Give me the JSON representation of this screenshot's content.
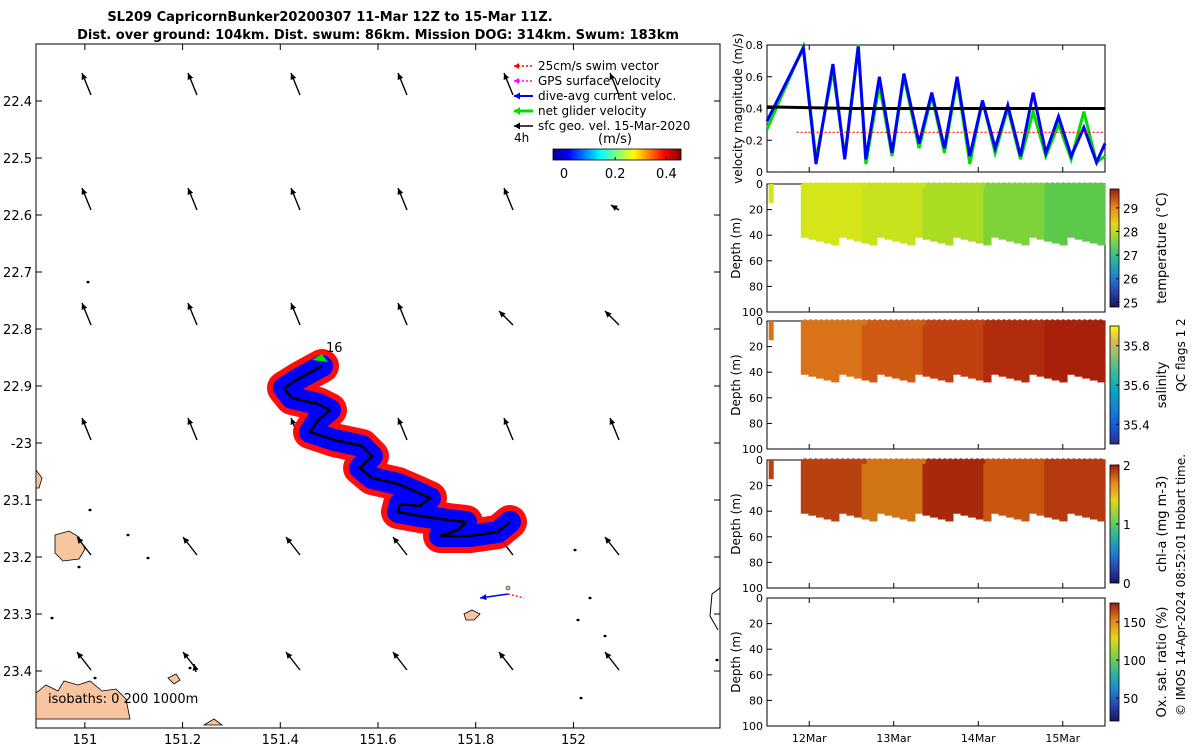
{
  "title": {
    "line1": "SL209 CapricornBunker20200307 11-Mar 12Z to 15-Mar 11Z.",
    "line2": "Dist. over ground: 104km. Dist. swum: 86km. Mission DOG: 314km. Swum: 183km"
  },
  "colors": {
    "swim": "#ff0000",
    "gps": "#ff00ff",
    "current": "#0000ff",
    "net": "#00cc00",
    "geo": "#000000",
    "land": "#f7c59f"
  },
  "map": {
    "legend": {
      "swim": "25cm/s swim vector",
      "gps": "GPS surface velocity",
      "current": "dive-avg current veloc.",
      "net": "net glider velocity",
      "geo": "sfc geo. vel. 15-Mar-2020"
    },
    "interval_label": "4h",
    "colorbar_title": "(m/s)",
    "colorbar_ticks": [
      "0",
      "0.2",
      "0.4"
    ],
    "track_label": "16",
    "isobaths_label": "isobaths: 0   200  1000m",
    "lon_ticks": [
      "151",
      "151.2",
      "151.4",
      "151.6",
      "151.8",
      "152"
    ],
    "lat_ticks": [
      "22.4",
      "22.5",
      "22.6",
      "22.7",
      "22.8",
      "22.9",
      "-23",
      "23.1",
      "23.2",
      "23.3",
      "23.4"
    ],
    "lon_range": [
      150.9,
      152.3
    ],
    "lat_range": [
      -23.5,
      -22.3
    ]
  },
  "chart_data": [
    {
      "type": "line",
      "title": "",
      "ylabel": "velocity magnitude (m/s)",
      "ylim": [
        0,
        0.8
      ],
      "y_ticks": [
        "0",
        "0.2",
        "0.4",
        "0.6",
        "0.8"
      ],
      "x_ticks": [
        "12Mar",
        "13Mar",
        "14Mar",
        "15Mar"
      ],
      "xlim": [
        11.5,
        15.5
      ],
      "series": [
        {
          "name": "net glider velocity",
          "color": "#00dd00",
          "x": [
            11.5,
            11.93,
            12.08,
            12.28,
            12.42,
            12.58,
            12.67,
            12.83,
            12.98,
            13.12,
            13.3,
            13.45,
            13.6,
            13.75,
            13.9,
            14.05,
            14.2,
            14.35,
            14.5,
            14.65,
            14.8,
            14.95,
            15.1,
            15.25,
            15.4,
            15.5
          ],
          "values": [
            0.27,
            0.79,
            0.08,
            0.64,
            0.1,
            0.8,
            0.05,
            0.55,
            0.1,
            0.6,
            0.15,
            0.48,
            0.12,
            0.58,
            0.05,
            0.45,
            0.12,
            0.4,
            0.08,
            0.38,
            0.1,
            0.3,
            0.08,
            0.38,
            0.06,
            0.1
          ]
        },
        {
          "name": "dive-avg current veloc.",
          "color": "#0000ff",
          "x": [
            11.5,
            11.93,
            12.08,
            12.28,
            12.42,
            12.58,
            12.67,
            12.83,
            12.98,
            13.12,
            13.3,
            13.45,
            13.6,
            13.75,
            13.9,
            14.05,
            14.2,
            14.35,
            14.5,
            14.65,
            14.8,
            14.95,
            15.1,
            15.25,
            15.4,
            15.5
          ],
          "values": [
            0.32,
            0.78,
            0.05,
            0.68,
            0.08,
            0.79,
            0.08,
            0.6,
            0.12,
            0.62,
            0.18,
            0.5,
            0.15,
            0.6,
            0.1,
            0.45,
            0.15,
            0.42,
            0.1,
            0.5,
            0.12,
            0.35,
            0.1,
            0.28,
            0.06,
            0.18
          ]
        },
        {
          "name": "sfc geo. vel. 15-Mar-2020",
          "color": "#000000",
          "x": [
            11.5,
            12.5,
            13.5,
            14.5,
            15.5
          ],
          "values": [
            0.41,
            0.4,
            0.4,
            0.4,
            0.4
          ]
        },
        {
          "name": "25cm/s swim vector",
          "color": "#ff0000",
          "x": [
            11.85,
            15.5
          ],
          "values": [
            0.25,
            0.25
          ]
        }
      ]
    },
    {
      "type": "heatmap",
      "title": "",
      "ylabel": "Depth (m)",
      "colorbar_label": "temperature (°C)",
      "colorbar_ticks": [
        "25",
        "26",
        "27",
        "28",
        "29"
      ],
      "clim": [
        24.8,
        29.8
      ],
      "y_ticks": [
        "0",
        "20",
        "40",
        "60",
        "80",
        "100"
      ],
      "ylim": [
        100,
        0
      ],
      "x_ticks": [
        "12Mar",
        "13Mar",
        "14Mar",
        "15Mar"
      ]
    },
    {
      "type": "heatmap",
      "title": "",
      "ylabel": "Depth (m)",
      "colorbar_label": "salinity",
      "colorbar_ticks": [
        "35.4",
        "35.6",
        "35.8"
      ],
      "clim": [
        35.3,
        35.9
      ],
      "y_ticks": [
        "0",
        "20",
        "40",
        "60",
        "80",
        "100"
      ],
      "ylim": [
        100,
        0
      ],
      "x_ticks": [
        "12Mar",
        "13Mar",
        "14Mar",
        "15Mar"
      ]
    },
    {
      "type": "heatmap",
      "title": "",
      "ylabel": "Depth (m)",
      "colorbar_label": "chl-a (mg m-3)",
      "colorbar_ticks": [
        "0",
        "1",
        "2"
      ],
      "clim": [
        0,
        2
      ],
      "y_ticks": [
        "0",
        "20",
        "40",
        "60",
        "80",
        "100"
      ],
      "ylim": [
        100,
        0
      ],
      "x_ticks": [
        "12Mar",
        "13Mar",
        "14Mar",
        "15Mar"
      ]
    },
    {
      "type": "heatmap",
      "title": "",
      "ylabel": "Depth (m)",
      "colorbar_label": "Ox. sat. ratio (%)",
      "colorbar_ticks": [
        "50",
        "100",
        "150"
      ],
      "clim": [
        20,
        175
      ],
      "y_ticks": [
        "0",
        "20",
        "40",
        "60",
        "80",
        "100"
      ],
      "ylim": [
        100,
        0
      ],
      "x_ticks": [
        "12Mar",
        "13Mar",
        "14Mar",
        "15Mar"
      ]
    }
  ],
  "footer": {
    "qc_flags": "QC flags 1  2",
    "credit": "© IMOS 14-Apr-2024 08:52:01 Hobart time."
  }
}
